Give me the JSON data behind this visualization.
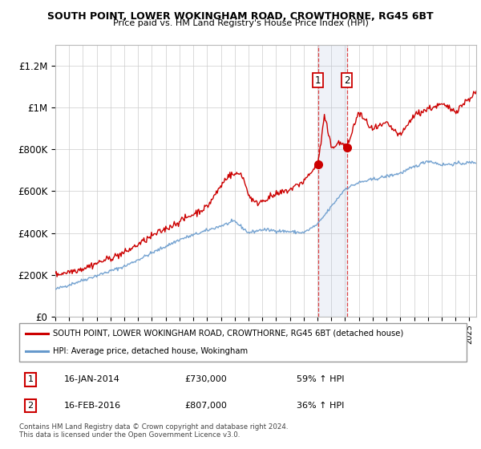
{
  "title": "SOUTH POINT, LOWER WOKINGHAM ROAD, CROWTHORNE, RG45 6BT",
  "subtitle": "Price paid vs. HM Land Registry's House Price Index (HPI)",
  "legend_line1": "SOUTH POINT, LOWER WOKINGHAM ROAD, CROWTHORNE, RG45 6BT (detached house)",
  "legend_line2": "HPI: Average price, detached house, Wokingham",
  "house_color": "#cc0000",
  "hpi_color": "#6699cc",
  "marker1_date": 2014.04,
  "marker2_date": 2016.12,
  "marker1_price": 730000,
  "marker2_price": 807000,
  "footer": "Contains HM Land Registry data © Crown copyright and database right 2024.\nThis data is licensed under the Open Government Licence v3.0.",
  "xmin": 1995,
  "xmax": 2025.5,
  "ymin": 0,
  "ymax": 1300000,
  "yticks": [
    0,
    200000,
    400000,
    600000,
    800000,
    1000000,
    1200000
  ],
  "ytick_labels": [
    "£0",
    "£200K",
    "£400K",
    "£600K",
    "£800K",
    "£1M",
    "£1.2M"
  ],
  "table_rows": [
    [
      "1",
      "16-JAN-2014",
      "£730,000",
      "59% ↑ HPI"
    ],
    [
      "2",
      "16-FEB-2016",
      "£807,000",
      "36% ↑ HPI"
    ]
  ]
}
